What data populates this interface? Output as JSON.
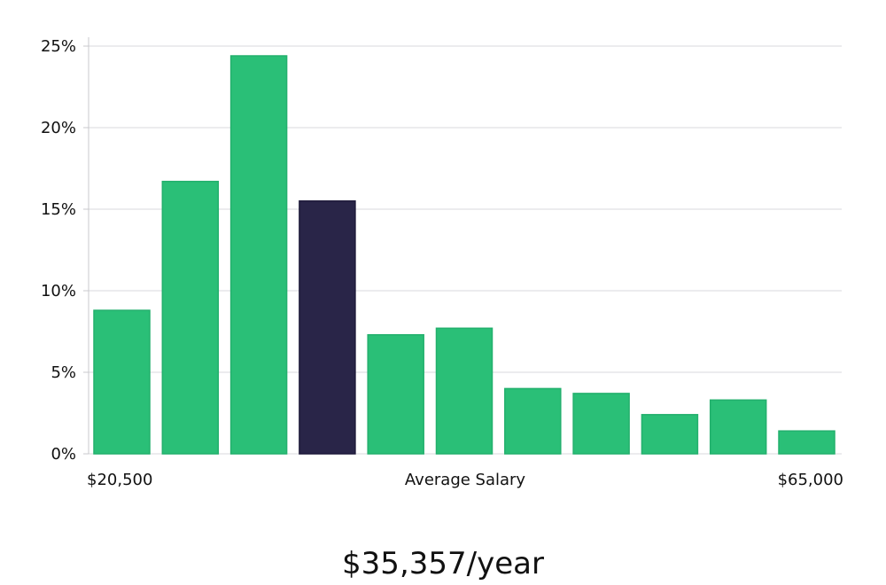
{
  "chart_data": {
    "type": "bar",
    "title": "",
    "xlabel": "Average Salary",
    "ylabel": "",
    "x_start_label": "$20,500",
    "x_end_label": "$65,000",
    "values": [
      8.8,
      16.7,
      24.4,
      15.5,
      7.3,
      7.7,
      4.0,
      3.7,
      2.4,
      3.3,
      1.4
    ],
    "highlight_index": 3,
    "ylim": [
      0,
      25
    ],
    "yticks": [
      0,
      5,
      10,
      15,
      20,
      25
    ],
    "ytick_labels": [
      "0%",
      "5%",
      "10%",
      "15%",
      "20%",
      "25%"
    ],
    "grid": true
  },
  "summary": {
    "average_salary": "$35,357/year"
  },
  "colors": {
    "bar": "#2abf77",
    "bar_stroke": "#23b06d",
    "highlight": "#292548",
    "grid": "#d9d9de",
    "axis": "#c8c8cc"
  }
}
